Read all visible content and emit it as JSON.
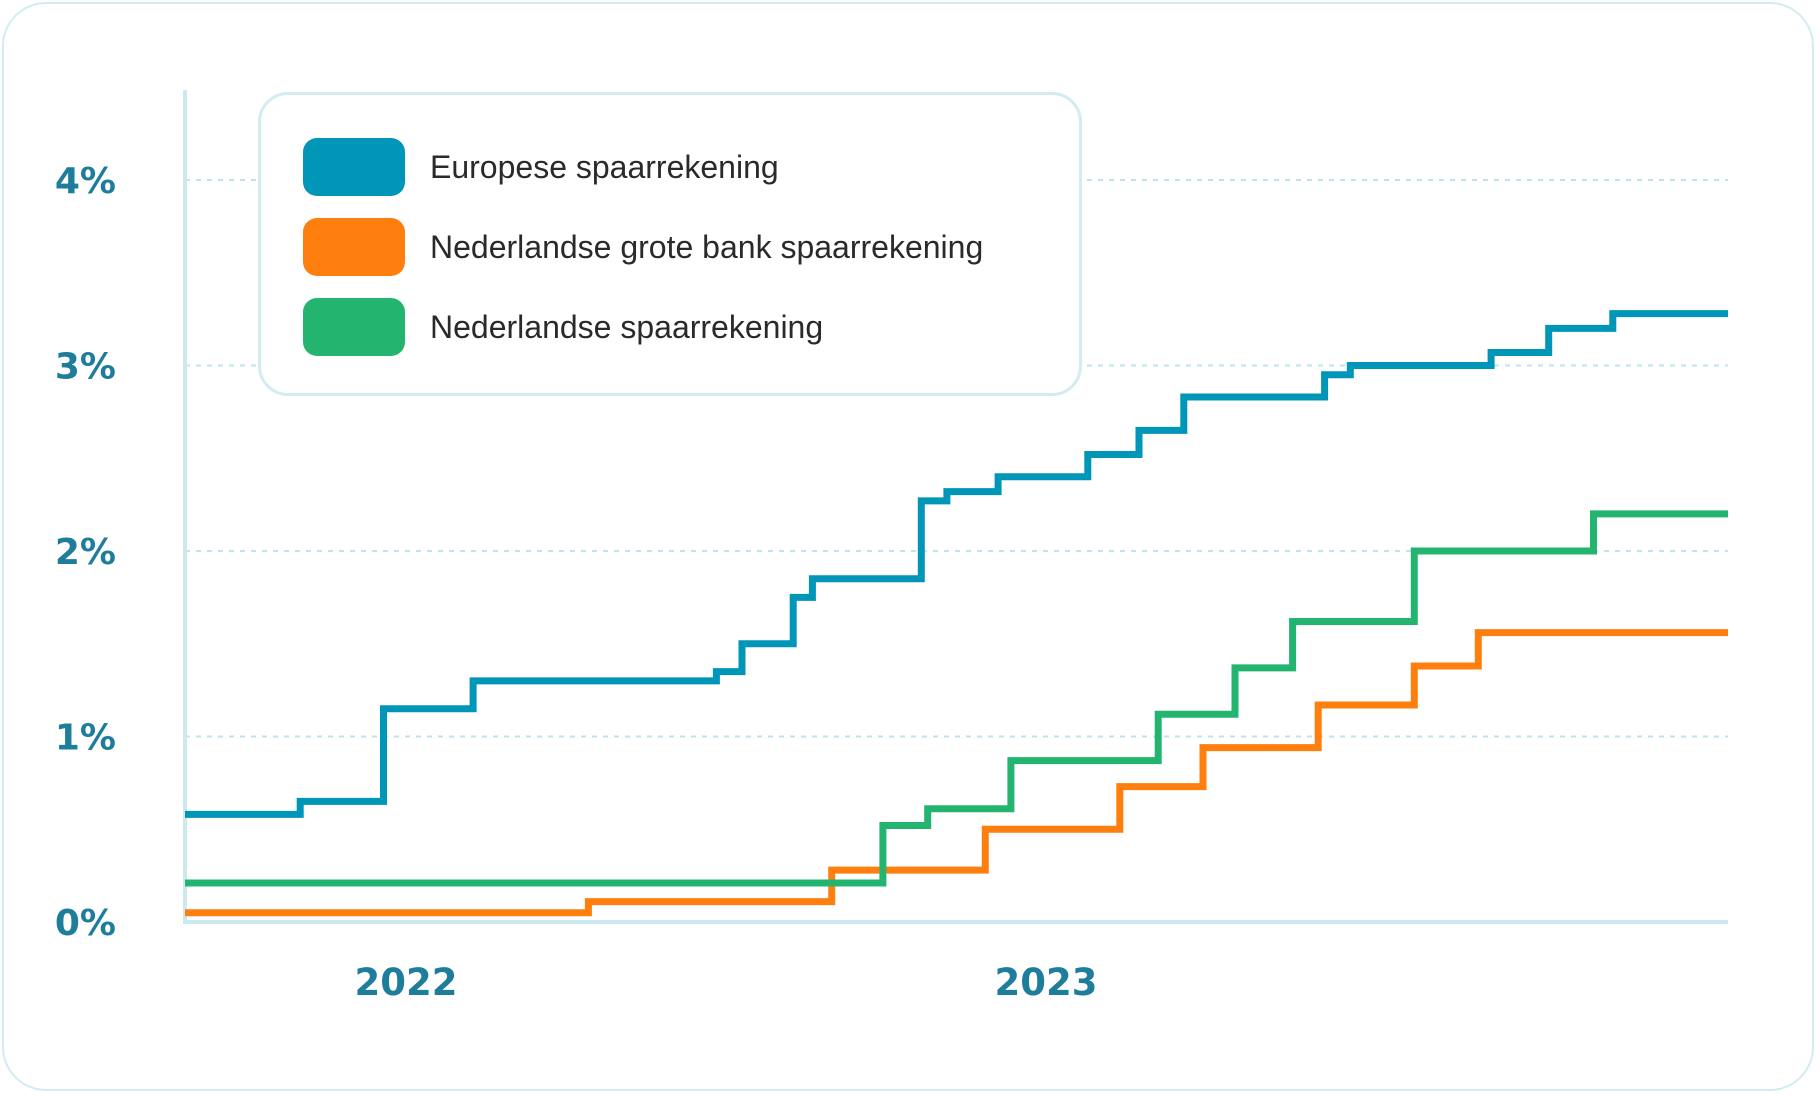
{
  "chart_data": {
    "type": "line",
    "step": true,
    "title": "",
    "xlabel": "",
    "ylabel": "",
    "y_ticks": [
      "0%",
      "1%",
      "2%",
      "3%",
      "4%"
    ],
    "ylim": [
      0,
      4
    ],
    "x_ticks": [
      "2022",
      "2023"
    ],
    "xlim": [
      2021.72,
      2024.13
    ],
    "grid": true,
    "legend_position": "top-left",
    "series": [
      {
        "name": "Europese spaarrekening",
        "color": "#0096b8",
        "points": [
          [
            2021.72,
            0.58
          ],
          [
            2021.9,
            0.65
          ],
          [
            2022.03,
            1.15
          ],
          [
            2022.17,
            1.3
          ],
          [
            2022.55,
            1.35
          ],
          [
            2022.59,
            1.5
          ],
          [
            2022.67,
            1.75
          ],
          [
            2022.7,
            1.85
          ],
          [
            2022.87,
            2.27
          ],
          [
            2022.91,
            2.32
          ],
          [
            2022.99,
            2.4
          ],
          [
            2023.13,
            2.52
          ],
          [
            2023.21,
            2.65
          ],
          [
            2023.28,
            2.83
          ],
          [
            2023.5,
            2.95
          ],
          [
            2023.54,
            3.0
          ],
          [
            2023.76,
            3.07
          ],
          [
            2023.85,
            3.2
          ],
          [
            2023.95,
            3.28
          ],
          [
            2024.13,
            3.28
          ]
        ]
      },
      {
        "name": "Nederlandse grote bank spaarrekening",
        "color": "#ff7f0e",
        "points": [
          [
            2021.72,
            0.05
          ],
          [
            2022.35,
            0.11
          ],
          [
            2022.73,
            0.28
          ],
          [
            2022.97,
            0.5
          ],
          [
            2023.18,
            0.73
          ],
          [
            2023.31,
            0.94
          ],
          [
            2023.49,
            1.17
          ],
          [
            2023.64,
            1.38
          ],
          [
            2023.74,
            1.56
          ],
          [
            2024.13,
            1.56
          ]
        ]
      },
      {
        "name": "Nederlandse spaarrekening",
        "color": "#23b56f",
        "points": [
          [
            2021.72,
            0.21
          ],
          [
            2022.81,
            0.52
          ],
          [
            2022.88,
            0.61
          ],
          [
            2023.01,
            0.87
          ],
          [
            2023.24,
            1.12
          ],
          [
            2023.36,
            1.37
          ],
          [
            2023.45,
            1.62
          ],
          [
            2023.64,
            2.0
          ],
          [
            2023.92,
            2.2
          ],
          [
            2024.13,
            2.2
          ]
        ]
      }
    ]
  }
}
